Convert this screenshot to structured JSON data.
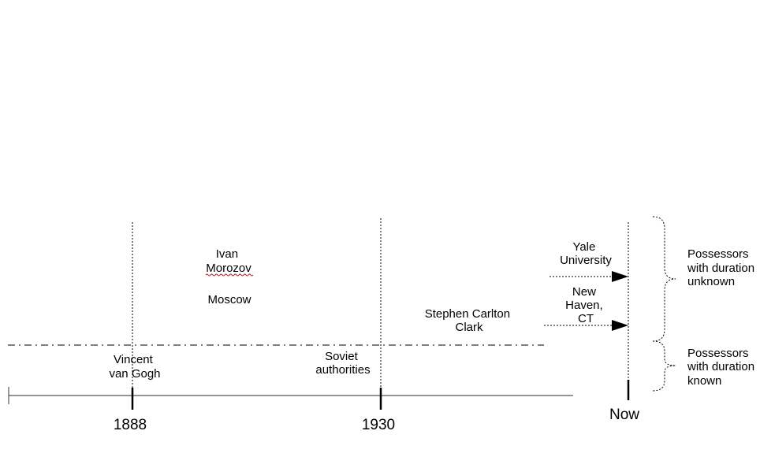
{
  "timeline": {
    "ticks": [
      {
        "label": "1888"
      },
      {
        "label": "1930"
      },
      {
        "label": "Now"
      }
    ]
  },
  "known": {
    "possessors": [
      {
        "lines": [
          "Vincent",
          "van Gogh"
        ]
      },
      {
        "lines": [
          "Soviet",
          "authorities"
        ]
      }
    ]
  },
  "unknown": {
    "possessors": [
      {
        "lines": [
          "Ivan",
          "Morozov"
        ]
      },
      {
        "lines": [
          "Moscow"
        ]
      },
      {
        "lines": [
          "Stephen Carlton",
          "Clark"
        ]
      },
      {
        "lines": [
          "Yale",
          "University"
        ]
      },
      {
        "lines": [
          "New",
          "Haven,",
          "CT"
        ]
      }
    ]
  },
  "legend": {
    "unknown_lines": [
      "Possessors",
      "with duration",
      "unknown"
    ],
    "known_lines": [
      "Possessors",
      "with duration",
      "known"
    ]
  }
}
